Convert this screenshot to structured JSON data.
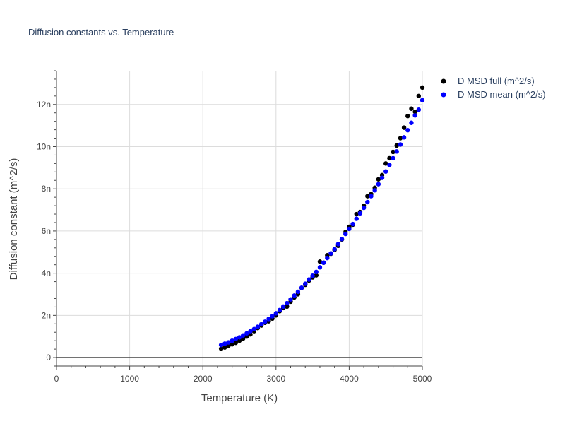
{
  "chart_data": {
    "type": "scatter",
    "title": "Diffusion constants vs. Temperature",
    "xlabel": "Temperature (K)",
    "ylabel": "Diffusion constant (m^2/s)",
    "xlim": [
      0,
      5000
    ],
    "ylim": [
      -4e-10,
      1.36e-08
    ],
    "xticks": [
      0,
      1000,
      2000,
      3000,
      4000,
      5000
    ],
    "xtick_labels": [
      "0",
      "1000",
      "2000",
      "3000",
      "4000",
      "5000"
    ],
    "yticks": [
      0,
      2e-09,
      4e-09,
      6e-09,
      8e-09,
      1e-08,
      1.2e-08
    ],
    "ytick_labels": [
      "0",
      "2n",
      "4n",
      "6n",
      "8n",
      "10n",
      "12n"
    ],
    "grid": true,
    "legend_position": "top-right",
    "x": [
      2250,
      2300,
      2350,
      2400,
      2450,
      2500,
      2550,
      2600,
      2650,
      2700,
      2750,
      2800,
      2850,
      2900,
      2950,
      3000,
      3050,
      3100,
      3150,
      3200,
      3250,
      3300,
      3350,
      3400,
      3450,
      3500,
      3550,
      3600,
      3650,
      3700,
      3750,
      3800,
      3850,
      3900,
      3950,
      4000,
      4050,
      4100,
      4150,
      4200,
      4250,
      4300,
      4350,
      4400,
      4450,
      4500,
      4550,
      4600,
      4650,
      4700,
      4750,
      4800,
      4850,
      4900,
      4950,
      5000
    ],
    "series": [
      {
        "name": "D MSD full (m^2/s)",
        "color": "#000000",
        "values": [
          4.2e-10,
          4.8e-10,
          5.6e-10,
          6.3e-10,
          7e-10,
          8e-10,
          9e-10,
          1e-09,
          1.1e-09,
          1.25e-09,
          1.4e-09,
          1.52e-09,
          1.65e-09,
          1.72e-09,
          1.85e-09,
          2e-09,
          2.2e-09,
          2.35e-09,
          2.42e-09,
          2.65e-09,
          2.85e-09,
          3e-09,
          3.3e-09,
          3.45e-09,
          3.65e-09,
          3.8e-09,
          3.9e-09,
          4.55e-09,
          4.5e-09,
          4.85e-09,
          4.92e-09,
          5.1e-09,
          5.3e-09,
          5.6e-09,
          5.95e-09,
          6.2e-09,
          6.3e-09,
          6.8e-09,
          6.9e-09,
          7.2e-09,
          7.65e-09,
          7.75e-09,
          8.05e-09,
          8.45e-09,
          8.65e-09,
          9.2e-09,
          9.45e-09,
          9.75e-09,
          1.005e-08,
          1.04e-08,
          1.09e-08,
          1.145e-08,
          1.18e-08,
          1.165e-08,
          1.24e-08,
          1.28e-08
        ]
      },
      {
        "name": "D MSD mean (m^2/s)",
        "color": "#0000ff",
        "values": [
          6e-10,
          6.6e-10,
          7.2e-10,
          8e-10,
          8.8e-10,
          9.6e-10,
          1.05e-09,
          1.15e-09,
          1.25e-09,
          1.35e-09,
          1.46e-09,
          1.58e-09,
          1.7e-09,
          1.83e-09,
          1.96e-09,
          2.1e-09,
          2.25e-09,
          2.42e-09,
          2.58e-09,
          2.76e-09,
          2.94e-09,
          3.12e-09,
          3.31e-09,
          3.5e-09,
          3.7e-09,
          3.88e-09,
          4.06e-09,
          4.28e-09,
          4.5e-09,
          4.72e-09,
          4.94e-09,
          5.14e-09,
          5.38e-09,
          5.62e-09,
          5.86e-09,
          6.1e-09,
          6.33e-09,
          6.58e-09,
          6.84e-09,
          7.1e-09,
          7.37e-09,
          7.65e-09,
          7.93e-09,
          8.22e-09,
          8.52e-09,
          8.82e-09,
          9.13e-09,
          9.45e-09,
          9.77e-09,
          1.01e-08,
          1.044e-08,
          1.078e-08,
          1.113e-08,
          1.148e-08,
          1.175e-08,
          1.22e-08
        ]
      }
    ]
  }
}
